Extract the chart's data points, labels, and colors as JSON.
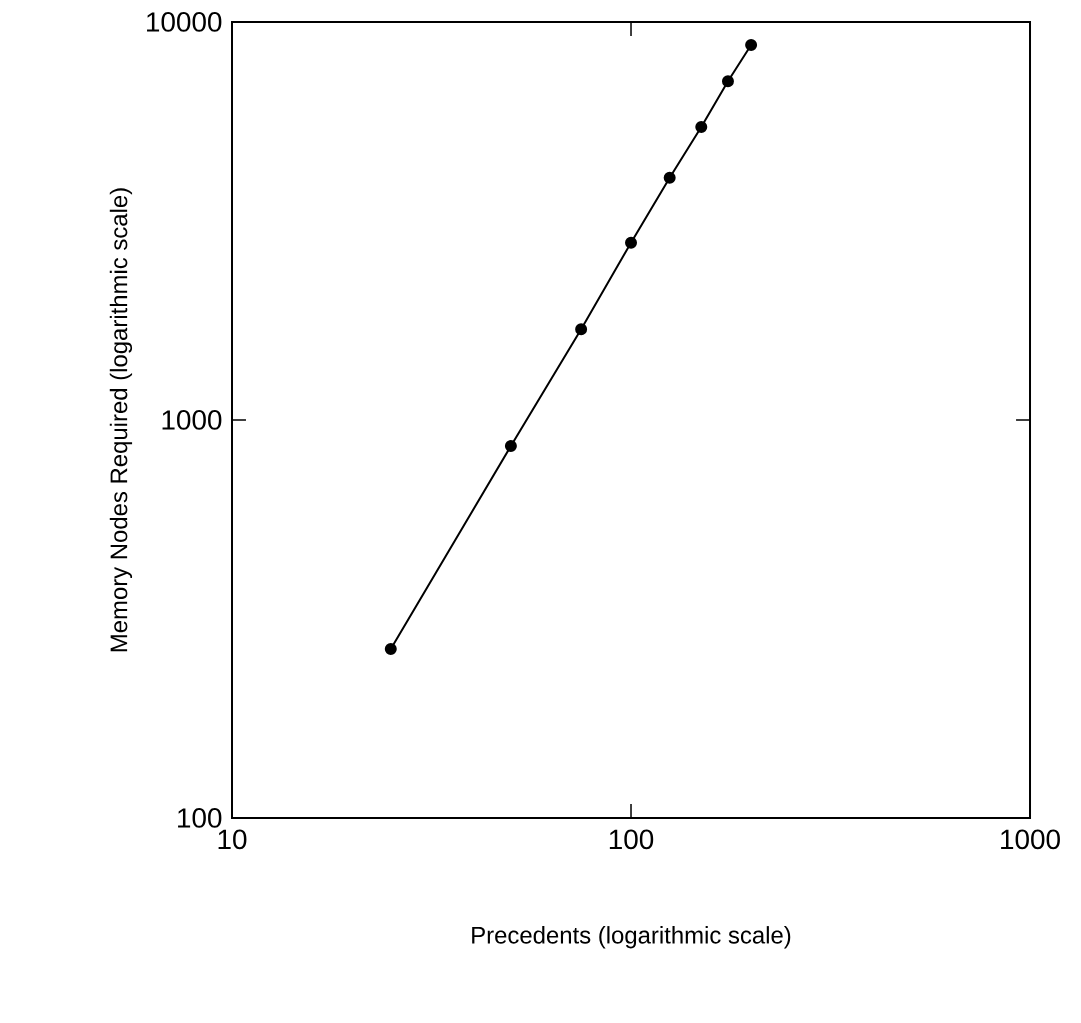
{
  "chart_data": {
    "type": "line",
    "xlabel": "Precedents (logarithmic scale)",
    "ylabel": "Memory Nodes Required (logarithmic scale)",
    "log": "xy",
    "marker": "circle",
    "line_style": "solid",
    "color": "#000000",
    "x": [
      25,
      50,
      75,
      100,
      125,
      150,
      175,
      200
    ],
    "values": [
      266,
      860,
      1690,
      2790,
      4060,
      5450,
      7100,
      8750
    ],
    "xlim": [
      10,
      1000
    ],
    "ylim": [
      100,
      10000
    ],
    "xticks": [
      10,
      100,
      1000
    ],
    "yticks": [
      100,
      1000,
      10000
    ]
  }
}
